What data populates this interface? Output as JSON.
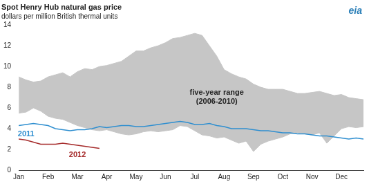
{
  "chart_data": {
    "type": "line",
    "title": "Spot Henry Hub natural gas price",
    "subtitle": "dollars per million British thermal units",
    "logo": "eia",
    "categories": [
      "Jan",
      null,
      null,
      null,
      "Feb",
      null,
      null,
      null,
      "Mar",
      null,
      null,
      null,
      "Apr",
      null,
      null,
      null,
      "May",
      null,
      null,
      null,
      "Jun",
      null,
      null,
      null,
      "Jul",
      null,
      null,
      null,
      "Aug",
      null,
      null,
      null,
      "Sep",
      null,
      null,
      null,
      "Oct",
      null,
      null,
      null,
      "Nov",
      null,
      null,
      null,
      "Dec",
      null,
      null,
      null
    ],
    "ylim": [
      0,
      14
    ],
    "yticks": [
      0,
      2,
      4,
      6,
      8,
      10,
      12,
      14
    ],
    "grid": false,
    "series": [
      {
        "name": "five-year range (2006-2010)",
        "type": "area",
        "color": "#c6c6c6",
        "low": [
          5.5,
          5.6,
          6.0,
          5.7,
          5.2,
          5.0,
          4.9,
          4.6,
          4.3,
          4.1,
          3.9,
          3.8,
          3.9,
          3.7,
          3.5,
          3.4,
          3.5,
          3.7,
          3.8,
          3.7,
          3.8,
          3.9,
          4.3,
          4.2,
          3.8,
          3.4,
          3.3,
          3.1,
          3.2,
          2.9,
          2.6,
          2.8,
          1.8,
          2.5,
          2.8,
          3.0,
          3.2,
          3.5,
          3.6,
          3.5,
          3.4,
          3.6,
          2.6,
          3.3,
          4.0,
          4.2,
          4.1,
          4.2
        ],
        "high": [
          9.0,
          8.7,
          8.5,
          8.6,
          9.0,
          9.2,
          9.4,
          9.0,
          9.5,
          9.8,
          9.7,
          10.0,
          10.1,
          10.3,
          10.5,
          11.0,
          11.5,
          11.5,
          11.8,
          12.0,
          12.3,
          12.7,
          12.8,
          13.0,
          13.2,
          13.0,
          12.0,
          11.0,
          9.7,
          9.3,
          9.0,
          8.8,
          8.3,
          8.0,
          7.8,
          7.8,
          7.8,
          7.6,
          7.4,
          7.4,
          7.5,
          7.6,
          7.4,
          7.2,
          7.3,
          7.0,
          6.9,
          6.8
        ]
      },
      {
        "name": "2011",
        "type": "line",
        "color": "#2f8fd0",
        "values": [
          4.3,
          4.4,
          4.5,
          4.4,
          4.3,
          4.0,
          3.9,
          3.8,
          3.9,
          3.9,
          4.0,
          4.2,
          4.1,
          4.2,
          4.3,
          4.3,
          4.2,
          4.2,
          4.3,
          4.4,
          4.5,
          4.6,
          4.7,
          4.6,
          4.4,
          4.4,
          4.5,
          4.3,
          4.2,
          4.0,
          4.0,
          4.0,
          3.9,
          3.8,
          3.8,
          3.7,
          3.6,
          3.6,
          3.5,
          3.5,
          3.4,
          3.3,
          3.3,
          3.2,
          3.1,
          3.0,
          3.1,
          3.0
        ]
      },
      {
        "name": "2012",
        "type": "line",
        "color": "#a52a2a",
        "values": [
          3.0,
          2.9,
          2.7,
          2.5,
          2.5,
          2.5,
          2.6,
          2.5,
          2.4,
          2.3,
          2.2,
          2.1,
          null,
          null,
          null,
          null,
          null,
          null,
          null,
          null,
          null,
          null,
          null,
          null,
          null,
          null,
          null,
          null,
          null,
          null,
          null,
          null,
          null,
          null,
          null,
          null,
          null,
          null,
          null,
          null,
          null,
          null,
          null,
          null,
          null,
          null,
          null,
          null
        ]
      }
    ]
  }
}
